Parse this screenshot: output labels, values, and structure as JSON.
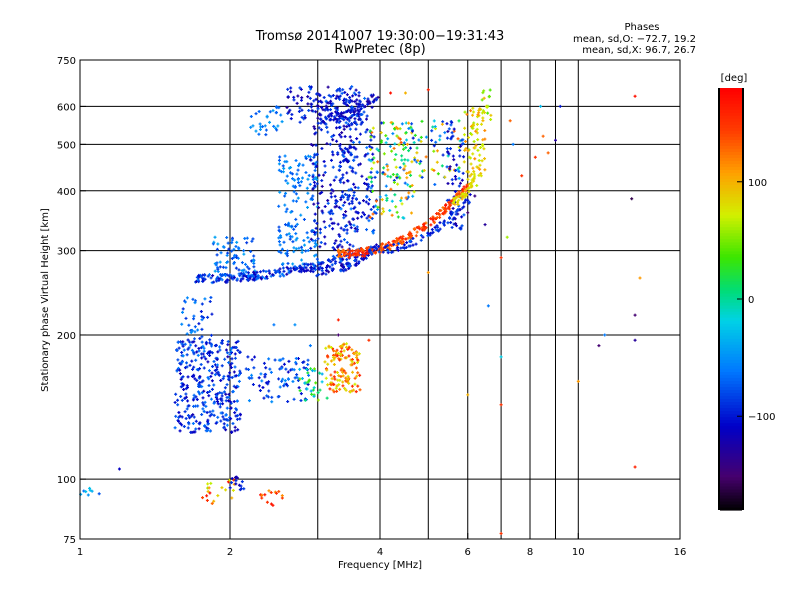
{
  "chart_data": {
    "type": "scatter",
    "title": "Tromsø 20141007 19:30:00−19:31:43",
    "subtitle": "RwPretec (8p)",
    "xlabel": "Frequency [MHz]",
    "ylabel": "Stationary phase Virtual Height [km]",
    "x_scale": "log",
    "y_scale": "log",
    "xlim": [
      1,
      16
    ],
    "ylim": [
      75,
      750
    ],
    "x_ticks": [
      1,
      2,
      4,
      6,
      8,
      10,
      16
    ],
    "x_minor_grid": [
      3,
      5,
      7,
      9
    ],
    "y_ticks": [
      75,
      100,
      200,
      300,
      400,
      500,
      600,
      750
    ],
    "grid": true,
    "phase_stats": {
      "heading": "Phases",
      "line1": "mean, sd,O:  −72.7, 19.2",
      "line2": "mean, sd,X:  96.7, 26.7"
    },
    "colorbar": {
      "label": "[deg]",
      "range": [
        -180,
        180
      ],
      "ticks": [
        100,
        0,
        -100
      ],
      "tick_labels": [
        "100",
        "0",
        "−100"
      ],
      "colormap": "rainbow"
    },
    "clusters": [
      {
        "f": [
          1.55,
          2.1
        ],
        "h": [
          125,
          195
        ],
        "ph": [
          -120,
          -60
        ],
        "n": 340
      },
      {
        "f": [
          1.6,
          1.85
        ],
        "h": [
          180,
          240
        ],
        "ph": [
          -100,
          -50
        ],
        "n": 50
      },
      {
        "f": [
          2.15,
          2.9
        ],
        "h": [
          145,
          180
        ],
        "ph": [
          -110,
          -50
        ],
        "n": 90
      },
      {
        "f": [
          2.75,
          3.15
        ],
        "h": [
          145,
          170
        ],
        "ph": [
          -40,
          60
        ],
        "n": 30
      },
      {
        "f": [
          3.1,
          3.65
        ],
        "h": [
          152,
          192
        ],
        "ph": [
          70,
          160
        ],
        "n": 130
      },
      {
        "f": [
          1.85,
          2.25
        ],
        "h": [
          265,
          320
        ],
        "ph": [
          -90,
          -40
        ],
        "n": 80
      },
      {
        "f": [
          2.5,
          3.0
        ],
        "h": [
          280,
          480
        ],
        "ph": [
          -80,
          -40
        ],
        "n": 150
      },
      {
        "f": [
          2.9,
          3.6
        ],
        "h": [
          300,
          620
        ],
        "ph": [
          -130,
          -70
        ],
        "n": 200
      },
      {
        "f": [
          3.3,
          3.9
        ],
        "h": [
          320,
          640
        ],
        "ph": [
          -120,
          -60
        ],
        "n": 160
      },
      {
        "f": [
          2.6,
          3.7
        ],
        "h": [
          540,
          660
        ],
        "ph": [
          -130,
          -70
        ],
        "n": 130
      },
      {
        "f": [
          2.2,
          2.55
        ],
        "h": [
          520,
          600
        ],
        "ph": [
          -80,
          -40
        ],
        "n": 30
      },
      {
        "f": [
          3.8,
          4.7
        ],
        "h": [
          350,
          560
        ],
        "ph": [
          -100,
          130
        ],
        "n": 130
      },
      {
        "f": [
          4.3,
          5.8
        ],
        "h": [
          410,
          560
        ],
        "ph": [
          -100,
          140
        ],
        "n": 80
      },
      {
        "f": [
          5.45,
          5.9
        ],
        "h": [
          330,
          560
        ],
        "ph": [
          -130,
          -70
        ],
        "n": 70
      },
      {
        "f": [
          5.9,
          6.5
        ],
        "h": [
          410,
          600
        ],
        "ph": [
          60,
          120
        ],
        "n": 80
      },
      {
        "f": [
          6.4,
          6.7
        ],
        "h": [
          560,
          650
        ],
        "ph": [
          40,
          100
        ],
        "n": 15
      },
      {
        "f": [
          1.0,
          1.1
        ],
        "h": [
          92,
          96
        ],
        "ph": [
          -80,
          -20
        ],
        "n": 8
      },
      {
        "f": [
          1.75,
          2.05
        ],
        "h": [
          88,
          100
        ],
        "ph": [
          60,
          180
        ],
        "n": 20
      },
      {
        "f": [
          1.95,
          2.15
        ],
        "h": [
          95,
          101
        ],
        "ph": [
          -130,
          -80
        ],
        "n": 15
      },
      {
        "f": [
          2.3,
          2.55
        ],
        "h": [
          88,
          95
        ],
        "ph": [
          110,
          180
        ],
        "n": 15
      }
    ],
    "arcs": [
      {
        "f_start": 1.7,
        "f_end": 3.7,
        "h_start": 262,
        "h_end": 300,
        "ph": [
          -120,
          -60
        ],
        "n": 220
      },
      {
        "f_start": 2.9,
        "f_end": 3.95,
        "h_start": 270,
        "h_end": 305,
        "ph": [
          -130,
          -70
        ],
        "n": 80
      },
      {
        "f_start": 3.3,
        "f_end": 6.0,
        "h_start": 295,
        "h_end": 410,
        "ph": [
          120,
          170
        ],
        "n": 220
      },
      {
        "f_start": 3.8,
        "f_end": 6.1,
        "h_start": 300,
        "h_end": 390,
        "ph": [
          -110,
          -70
        ],
        "n": 80
      },
      {
        "f_start": 5.6,
        "f_end": 6.2,
        "h_start": 380,
        "h_end": 430,
        "ph": [
          70,
          100
        ],
        "n": 40
      },
      {
        "f_start": 3.0,
        "f_end": 4.0,
        "h_start": 560,
        "h_end": 640,
        "ph": [
          -130,
          -80
        ],
        "n": 60
      }
    ],
    "scatter_points": [
      {
        "f": 1.2,
        "h": 105,
        "ph": -110
      },
      {
        "f": 7.0,
        "h": 290,
        "ph": 150
      },
      {
        "f": 7.0,
        "h": 180,
        "ph": -20
      },
      {
        "f": 7.0,
        "h": 143,
        "ph": 150
      },
      {
        "f": 7.0,
        "h": 77,
        "ph": 150
      },
      {
        "f": 7.3,
        "h": 560,
        "ph": 130
      },
      {
        "f": 7.4,
        "h": 500,
        "ph": -60
      },
      {
        "f": 7.2,
        "h": 320,
        "ph": 60
      },
      {
        "f": 7.7,
        "h": 430,
        "ph": 150
      },
      {
        "f": 8.4,
        "h": 600,
        "ph": -30
      },
      {
        "f": 8.5,
        "h": 520,
        "ph": 130
      },
      {
        "f": 8.7,
        "h": 480,
        "ph": 130
      },
      {
        "f": 9.0,
        "h": 510,
        "ph": -130
      },
      {
        "f": 8.2,
        "h": 470,
        "ph": 150
      },
      {
        "f": 9.2,
        "h": 600,
        "ph": -100
      },
      {
        "f": 10.0,
        "h": 160,
        "ph": 110
      },
      {
        "f": 11.3,
        "h": 200,
        "ph": -60
      },
      {
        "f": 11.0,
        "h": 190,
        "ph": -150
      },
      {
        "f": 13.0,
        "h": 630,
        "ph": 170
      },
      {
        "f": 12.8,
        "h": 385,
        "ph": -160
      },
      {
        "f": 13.0,
        "h": 220,
        "ph": -150
      },
      {
        "f": 13.0,
        "h": 195,
        "ph": -130
      },
      {
        "f": 13.3,
        "h": 263,
        "ph": 110
      },
      {
        "f": 13.0,
        "h": 106,
        "ph": 160
      },
      {
        "f": 6.0,
        "h": 360,
        "ph": -150
      },
      {
        "f": 6.2,
        "h": 390,
        "ph": -140
      },
      {
        "f": 6.5,
        "h": 340,
        "ph": -130
      },
      {
        "f": 5.0,
        "h": 270,
        "ph": 110
      },
      {
        "f": 6.0,
        "h": 150,
        "ph": 100
      },
      {
        "f": 3.3,
        "h": 215,
        "ph": 160
      },
      {
        "f": 3.3,
        "h": 200,
        "ph": -150
      },
      {
        "f": 3.8,
        "h": 195,
        "ph": 150
      },
      {
        "f": 2.9,
        "h": 190,
        "ph": -60
      },
      {
        "f": 2.7,
        "h": 210,
        "ph": -50
      },
      {
        "f": 2.45,
        "h": 210,
        "ph": -60
      },
      {
        "f": 6.6,
        "h": 230,
        "ph": -60
      },
      {
        "f": 5.0,
        "h": 650,
        "ph": 160
      },
      {
        "f": 4.2,
        "h": 640,
        "ph": 170
      },
      {
        "f": 4.5,
        "h": 640,
        "ph": 100
      }
    ]
  }
}
